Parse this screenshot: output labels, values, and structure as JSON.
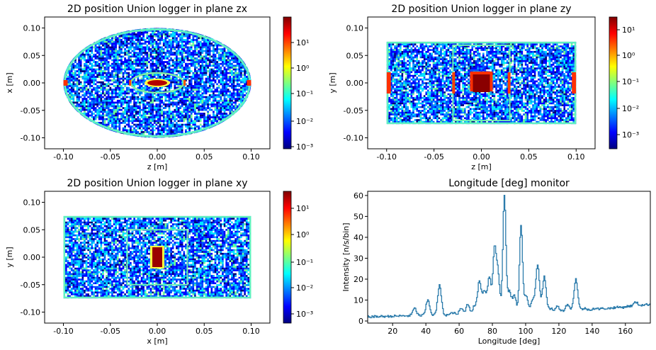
{
  "chart_data": [
    {
      "type": "heatmap",
      "title": "2D position Union logger in plane zx",
      "xlabel": "z [m]",
      "ylabel": "x [m]",
      "xlim": [
        -0.12,
        0.12
      ],
      "ylim": [
        -0.12,
        0.12
      ],
      "x_ticks": [
        "-0.10",
        "-0.05",
        "0.00",
        "0.05",
        "0.10"
      ],
      "y_ticks": [
        "0.10",
        "0.05",
        "0.00",
        "-0.05",
        "-0.10"
      ],
      "colorbar": {
        "scale": "log",
        "range": [
          0.001,
          70
        ],
        "ticks": [
          "10¹",
          "10⁰",
          "10⁻¹",
          "10⁻²",
          "10⁻³"
        ]
      },
      "colormap": [
        "#00007f",
        "#0000ff",
        "#007fff",
        "#00ffff",
        "#7fff7f",
        "#ffff00",
        "#ff7f00",
        "#ff0000",
        "#7f0000"
      ],
      "shape": "ellipse",
      "extent": {
        "z": [
          -0.1,
          0.1
        ],
        "x": [
          -0.1,
          0.1
        ]
      }
    },
    {
      "type": "heatmap",
      "title": "2D position Union logger in plane zy",
      "xlabel": "z [m]",
      "ylabel": "y [m]",
      "xlim": [
        -0.12,
        0.12
      ],
      "ylim": [
        -0.12,
        0.12
      ],
      "x_ticks": [
        "-0.10",
        "-0.05",
        "0.00",
        "0.05",
        "0.10"
      ],
      "y_ticks": [
        "0.10",
        "0.05",
        "0.00",
        "-0.05",
        "-0.10"
      ],
      "colorbar": {
        "scale": "log",
        "range": [
          0.0005,
          40
        ],
        "ticks": [
          "10¹",
          "10⁰",
          "10⁻¹",
          "10⁻²",
          "10⁻³"
        ]
      },
      "colormap": [
        "#00007f",
        "#0000ff",
        "#007fff",
        "#00ffff",
        "#7fff7f",
        "#ffff00",
        "#ff7f00",
        "#ff0000",
        "#7f0000"
      ],
      "shape": "rectangle",
      "extent": {
        "z": [
          -0.1,
          0.1
        ],
        "y": [
          -0.075,
          0.075
        ]
      }
    },
    {
      "type": "heatmap",
      "title": "2D position Union logger in plane xy",
      "xlabel": "x [m]",
      "ylabel": "y [m]",
      "xlim": [
        -0.12,
        0.12
      ],
      "ylim": [
        -0.12,
        0.12
      ],
      "x_ticks": [
        "-0.10",
        "-0.05",
        "0.00",
        "0.05",
        "0.10"
      ],
      "y_ticks": [
        "0.10",
        "0.05",
        "0.00",
        "-0.05",
        "-0.10"
      ],
      "colorbar": {
        "scale": "log",
        "range": [
          0.0005,
          40
        ],
        "ticks": [
          "10¹",
          "10⁰",
          "10⁻¹",
          "10⁻²",
          "10⁻³"
        ]
      },
      "colormap": [
        "#00007f",
        "#0000ff",
        "#007fff",
        "#00ffff",
        "#7fff7f",
        "#ffff00",
        "#ff7f00",
        "#ff0000",
        "#7f0000"
      ],
      "shape": "rectangle",
      "extent": {
        "x": [
          -0.1,
          0.1
        ],
        "y": [
          -0.075,
          0.075
        ]
      }
    },
    {
      "type": "line",
      "title": "Longitude [deg] monitor",
      "xlabel": "Longitude [deg]",
      "ylabel": "Intensity [n/s/bin]",
      "xlim": [
        5,
        175
      ],
      "ylim": [
        -1,
        62
      ],
      "x_ticks": [
        "20",
        "40",
        "60",
        "80",
        "100",
        "120",
        "140",
        "160"
      ],
      "y_ticks": [
        "0",
        "10",
        "20",
        "30",
        "40",
        "50",
        "60"
      ],
      "color": "#2b7bab",
      "baseline": [
        [
          5,
          2
        ],
        [
          30,
          2.5
        ],
        [
          60,
          3
        ],
        [
          100,
          4
        ],
        [
          140,
          5.5
        ],
        [
          175,
          8
        ]
      ],
      "peaks": [
        {
          "x": 33,
          "y": 6
        },
        {
          "x": 41,
          "y": 10
        },
        {
          "x": 48,
          "y": 17
        },
        {
          "x": 56,
          "y": 4
        },
        {
          "x": 61,
          "y": 6
        },
        {
          "x": 65,
          "y": 8
        },
        {
          "x": 69,
          "y": 7
        },
        {
          "x": 72,
          "y": 19
        },
        {
          "x": 75,
          "y": 14
        },
        {
          "x": 78,
          "y": 21
        },
        {
          "x": 81,
          "y": 32
        },
        {
          "x": 83,
          "y": 24
        },
        {
          "x": 87,
          "y": 60
        },
        {
          "x": 90,
          "y": 14
        },
        {
          "x": 93,
          "y": 12
        },
        {
          "x": 97,
          "y": 46
        },
        {
          "x": 100,
          "y": 12
        },
        {
          "x": 104,
          "y": 10
        },
        {
          "x": 107,
          "y": 27
        },
        {
          "x": 111,
          "y": 21
        },
        {
          "x": 115,
          "y": 6
        },
        {
          "x": 119,
          "y": 7
        },
        {
          "x": 125,
          "y": 8
        },
        {
          "x": 130,
          "y": 20
        },
        {
          "x": 135,
          "y": 6
        },
        {
          "x": 141,
          "y": 6
        },
        {
          "x": 150,
          "y": 6
        },
        {
          "x": 158,
          "y": 6.5
        },
        {
          "x": 166,
          "y": 9
        }
      ]
    }
  ]
}
